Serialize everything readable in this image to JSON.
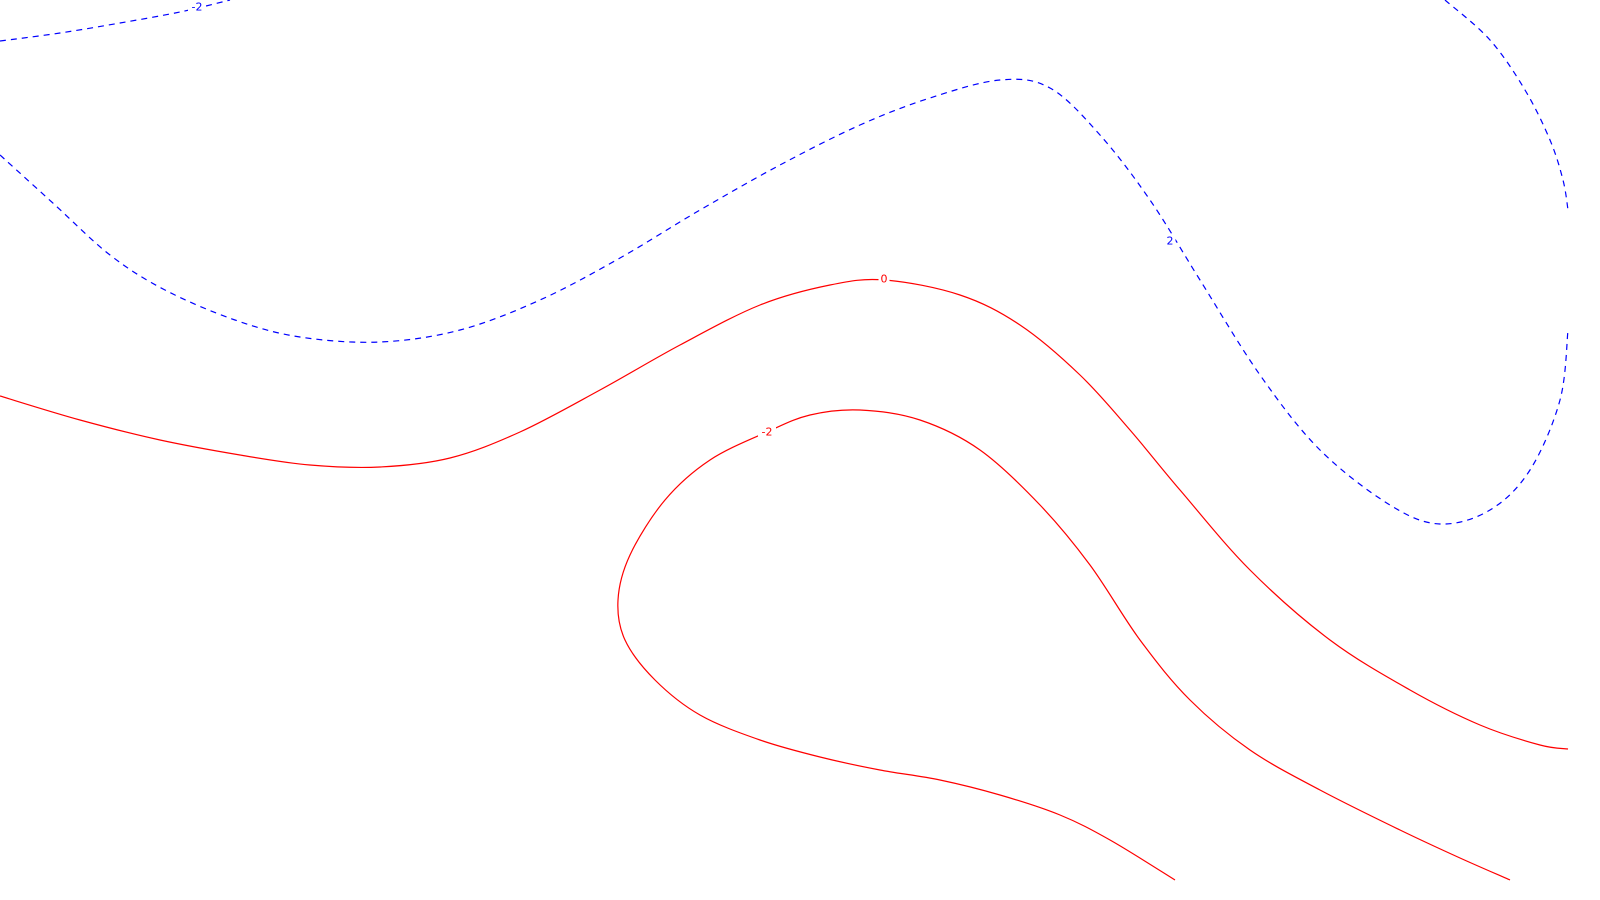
{
  "chart_data": {
    "type": "contour",
    "title": "",
    "xlabel": "",
    "ylabel": "",
    "grid": false,
    "legend": "none",
    "levels": [
      {
        "name": "contour-blue-dashed-upper-left",
        "label": "-2",
        "color": "#0000ff",
        "style": "dashed",
        "points": [
          [
            0,
            41
          ],
          [
            60,
            33
          ],
          [
            120,
            23
          ],
          [
            180,
            12
          ],
          [
            230,
            0
          ]
        ],
        "label_at": [
          197,
          7
        ]
      },
      {
        "name": "contour-blue-dashed-main",
        "label": "2",
        "color": "#0000ff",
        "style": "dashed",
        "points": [
          [
            0,
            155
          ],
          [
            55,
            205
          ],
          [
            110,
            255
          ],
          [
            165,
            290
          ],
          [
            235,
            320
          ],
          [
            300,
            337
          ],
          [
            380,
            342
          ],
          [
            460,
            330
          ],
          [
            540,
            300
          ],
          [
            620,
            258
          ],
          [
            700,
            210
          ],
          [
            780,
            165
          ],
          [
            860,
            125
          ],
          [
            930,
            98
          ],
          [
            1000,
            80
          ],
          [
            1050,
            88
          ],
          [
            1100,
            135
          ],
          [
            1150,
            200
          ],
          [
            1200,
            280
          ],
          [
            1260,
            375
          ],
          [
            1320,
            450
          ],
          [
            1390,
            505
          ],
          [
            1440,
            524
          ],
          [
            1490,
            510
          ],
          [
            1530,
            470
          ],
          [
            1560,
            400
          ],
          [
            1568,
            330
          ]
        ],
        "label_at": [
          1170,
          241
        ]
      },
      {
        "name": "contour-blue-dashed-upper-right",
        "label": "",
        "color": "#0000ff",
        "style": "dashed",
        "points": [
          [
            1445,
            0
          ],
          [
            1490,
            40
          ],
          [
            1525,
            90
          ],
          [
            1550,
            140
          ],
          [
            1563,
            180
          ],
          [
            1568,
            210
          ]
        ],
        "label_at": null
      },
      {
        "name": "contour-red-zero",
        "label": "0",
        "color": "#ff0000",
        "style": "solid",
        "points": [
          [
            0,
            396
          ],
          [
            80,
            420
          ],
          [
            160,
            440
          ],
          [
            240,
            455
          ],
          [
            310,
            465
          ],
          [
            380,
            467
          ],
          [
            450,
            458
          ],
          [
            520,
            432
          ],
          [
            600,
            390
          ],
          [
            680,
            345
          ],
          [
            760,
            305
          ],
          [
            830,
            285
          ],
          [
            885,
            280
          ],
          [
            960,
            295
          ],
          [
            1020,
            325
          ],
          [
            1080,
            375
          ],
          [
            1130,
            430
          ],
          [
            1180,
            490
          ],
          [
            1250,
            570
          ],
          [
            1330,
            640
          ],
          [
            1410,
            690
          ],
          [
            1480,
            725
          ],
          [
            1540,
            745
          ],
          [
            1568,
            749
          ]
        ],
        "label_at": [
          884,
          279
        ]
      },
      {
        "name": "contour-red-minus-two",
        "label": "-2",
        "color": "#ff0000",
        "style": "solid",
        "points": [
          [
            1175,
            880
          ],
          [
            1110,
            840
          ],
          [
            1060,
            815
          ],
          [
            1000,
            795
          ],
          [
            940,
            780
          ],
          [
            880,
            770
          ],
          [
            820,
            757
          ],
          [
            760,
            740
          ],
          [
            700,
            715
          ],
          [
            655,
            680
          ],
          [
            625,
            640
          ],
          [
            618,
            600
          ],
          [
            630,
            555
          ],
          [
            665,
            500
          ],
          [
            710,
            460
          ],
          [
            767,
            432
          ],
          [
            810,
            415
          ],
          [
            860,
            410
          ],
          [
            920,
            420
          ],
          [
            980,
            450
          ],
          [
            1040,
            505
          ],
          [
            1090,
            565
          ],
          [
            1140,
            640
          ],
          [
            1190,
            700
          ],
          [
            1250,
            750
          ],
          [
            1320,
            790
          ],
          [
            1400,
            830
          ],
          [
            1460,
            858
          ],
          [
            1510,
            880
          ]
        ],
        "label_at": [
          767,
          432
        ]
      }
    ]
  }
}
